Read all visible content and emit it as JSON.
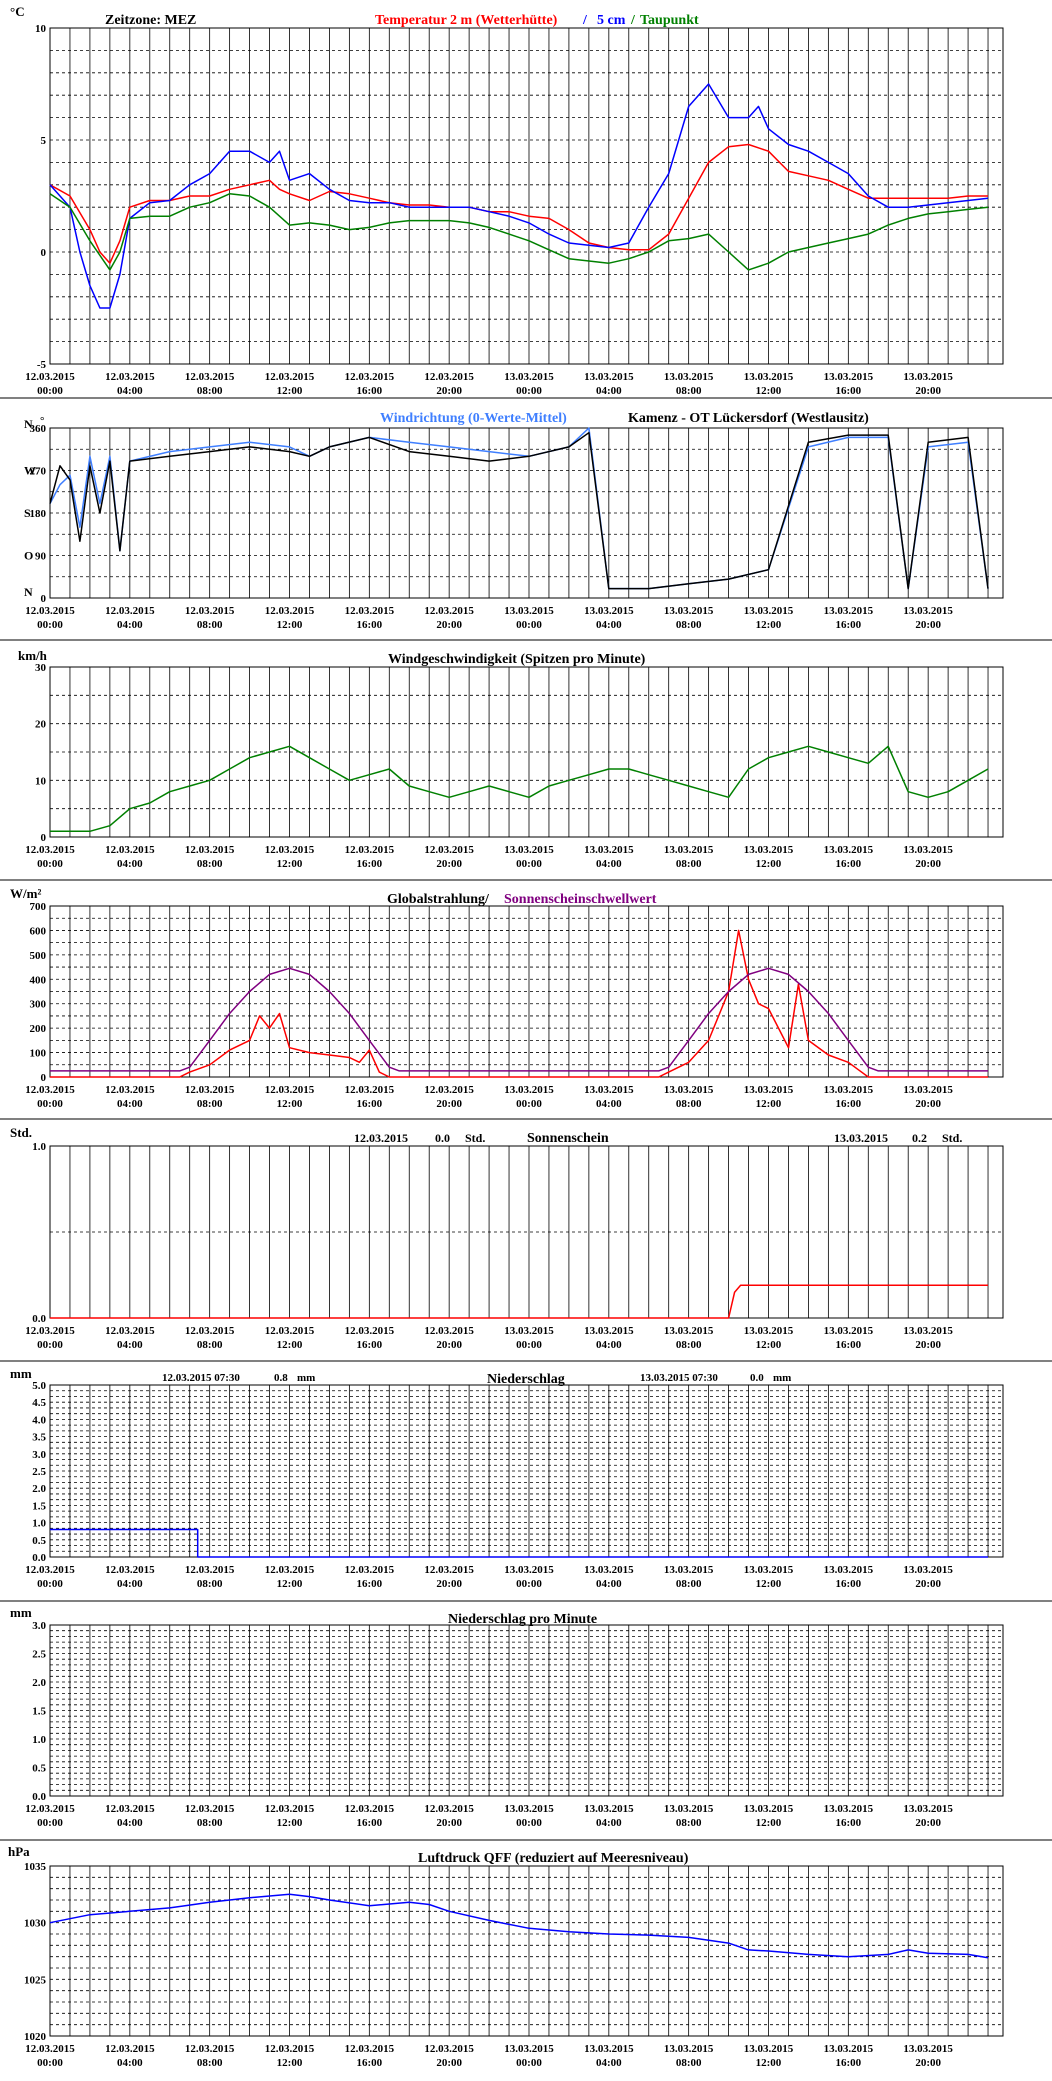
{
  "x_ticks": [
    {
      "date": "12.03.2015",
      "time": "00:00"
    },
    {
      "date": "12.03.2015",
      "time": "04:00"
    },
    {
      "date": "12.03.2015",
      "time": "08:00"
    },
    {
      "date": "12.03.2015",
      "time": "12:00"
    },
    {
      "date": "12.03.2015",
      "time": "16:00"
    },
    {
      "date": "12.03.2015",
      "time": "20:00"
    },
    {
      "date": "13.03.2015",
      "time": "00:00"
    },
    {
      "date": "13.03.2015",
      "time": "04:00"
    },
    {
      "date": "13.03.2015",
      "time": "08:00"
    },
    {
      "date": "13.03.2015",
      "time": "12:00"
    },
    {
      "date": "13.03.2015",
      "time": "16:00"
    },
    {
      "date": "13.03.2015",
      "time": "20:00"
    }
  ],
  "colors": {
    "red": "#ff0000",
    "blue": "#0000ff",
    "green": "#008000",
    "black": "#000000",
    "purple": "#800080",
    "lightblue": "#3f7fff"
  },
  "panels": {
    "temp": {
      "unit": "°C",
      "zone": "Zeitzone: MEZ",
      "title_red": "Temperatur 2 m (Wetterhütte)",
      "sep1": "/",
      "title_blue": "5 cm",
      "sep2": "/",
      "title_green": "Taupunkt",
      "yticks": [
        "10",
        "5",
        "0",
        "-5"
      ]
    },
    "wind_dir": {
      "title_blue": "Windrichtung (0-Werte-Mittel)",
      "title_black": "Kamenz - OT Lückersdorf (Westlausitz)",
      "compass": [
        "N",
        "W",
        "S",
        "O",
        "N"
      ],
      "yticks": [
        "360",
        "270",
        "180",
        "90",
        "0"
      ],
      "degree": "°"
    },
    "wind_speed": {
      "unit": "km/h",
      "title": "Windgeschwindigkeit (Spitzen pro Minute)",
      "yticks": [
        "30",
        "20",
        "10",
        "0"
      ]
    },
    "radiation": {
      "unit": "W/m²",
      "title_black": "Globalstrahlung/",
      "title_purple": "Sonnenscheinschwellwert",
      "yticks": [
        "700",
        "600",
        "500",
        "400",
        "300",
        "200",
        "100",
        "0"
      ]
    },
    "sunshine": {
      "unit": "Std.",
      "title": "Sonnenschein",
      "day1_date": "12.03.2015",
      "day1_value": "0.0",
      "day1_unit": "Std.",
      "day2_date": "13.03.2015",
      "day2_value": "0.2",
      "day2_unit": "Std.",
      "yticks": [
        "1.0",
        "0.0"
      ]
    },
    "precip": {
      "unit": "mm",
      "title": "Niederschlag",
      "day1_label": "12.03.2015 07:30",
      "day1_value": "0.8",
      "day1_unit": "mm",
      "day2_label": "13.03.2015 07:30",
      "day2_value": "0.0",
      "day2_unit": "mm",
      "yticks": [
        "5.0",
        "4.5",
        "4.0",
        "3.5",
        "3.0",
        "2.5",
        "2.0",
        "1.5",
        "1.0",
        "0.5",
        "0.0"
      ]
    },
    "precip_min": {
      "unit": "mm",
      "title": "Niederschlag pro Minute",
      "yticks": [
        "3.0",
        "2.5",
        "2.0",
        "1.5",
        "1.0",
        "0.5",
        "0.0"
      ]
    },
    "pressure": {
      "unit": "hPa",
      "title": "Luftdruck QFF (reduziert auf Meeresniveau)",
      "yticks": [
        "1035",
        "1030",
        "1025",
        "1020"
      ]
    }
  },
  "chart_data": [
    {
      "type": "line",
      "panel": "temp",
      "ylim": [
        -5,
        10
      ],
      "x_unit": "hours since 12.03.2015 00:00",
      "series": [
        {
          "name": "Temperatur 2 m (Wetterhütte)",
          "color": "#ff0000",
          "x": [
            0,
            1,
            2,
            2.5,
            3,
            3.5,
            4,
            5,
            6,
            7,
            8,
            9,
            10,
            11,
            11.5,
            12,
            13,
            14,
            15,
            16,
            17,
            18,
            19,
            20,
            21,
            22,
            23,
            24,
            25,
            26,
            27,
            28,
            29,
            30,
            31,
            32,
            33,
            34,
            35,
            36,
            37,
            38,
            39,
            40,
            41,
            42,
            43,
            44,
            45,
            46,
            47
          ],
          "y": [
            3,
            2.5,
            1,
            0,
            -0.5,
            0.5,
            2,
            2.3,
            2.3,
            2.5,
            2.5,
            2.8,
            3,
            3.2,
            2.8,
            2.6,
            2.3,
            2.7,
            2.6,
            2.4,
            2.2,
            2.1,
            2.1,
            2,
            2,
            1.8,
            1.8,
            1.6,
            1.5,
            1.0,
            0.4,
            0.2,
            0.1,
            0.1,
            0.8,
            2.4,
            4,
            4.7,
            4.8,
            4.5,
            3.6,
            3.4,
            3.2,
            2.8,
            2.4,
            2.4,
            2.4,
            2.4,
            2.4,
            2.5,
            2.5
          ]
        },
        {
          "name": "5 cm",
          "color": "#0000ff",
          "x": [
            0,
            1,
            1.5,
            2,
            2.5,
            3,
            3.5,
            4,
            5,
            6,
            7,
            8,
            9,
            10,
            11,
            11.5,
            12,
            13,
            14,
            15,
            16,
            17,
            18,
            19,
            20,
            21,
            22,
            23,
            24,
            25,
            26,
            27,
            28,
            29,
            30,
            31,
            32,
            33,
            34,
            35,
            35.5,
            36,
            37,
            38,
            39,
            40,
            41,
            42,
            43,
            44,
            45,
            46,
            47
          ],
          "y": [
            3,
            2,
            0,
            -1.5,
            -2.5,
            -2.5,
            -1,
            1.5,
            2.2,
            2.3,
            3,
            3.5,
            4.5,
            4.5,
            4,
            4.5,
            3.2,
            3.5,
            2.8,
            2.3,
            2.2,
            2.2,
            2,
            2,
            2,
            2,
            1.8,
            1.6,
            1.3,
            0.8,
            0.4,
            0.3,
            0.2,
            0.4,
            2,
            3.5,
            6.5,
            7.5,
            6,
            6,
            6.5,
            5.5,
            4.8,
            4.5,
            4,
            3.5,
            2.5,
            2,
            2,
            2.1,
            2.2,
            2.3,
            2.4
          ]
        },
        {
          "name": "Taupunkt",
          "color": "#008000",
          "x": [
            0,
            1,
            2,
            3,
            3.5,
            4,
            5,
            6,
            7,
            8,
            9,
            10,
            11,
            12,
            13,
            14,
            15,
            16,
            17,
            18,
            19,
            20,
            21,
            22,
            23,
            24,
            25,
            26,
            27,
            28,
            29,
            30,
            31,
            32,
            33,
            34,
            35,
            36,
            37,
            38,
            39,
            40,
            41,
            42,
            43,
            44,
            45,
            46,
            47
          ],
          "y": [
            2.6,
            2,
            0.5,
            -0.8,
            0,
            1.5,
            1.6,
            1.6,
            2,
            2.2,
            2.6,
            2.5,
            2,
            1.2,
            1.3,
            1.2,
            1,
            1.1,
            1.3,
            1.4,
            1.4,
            1.4,
            1.3,
            1.1,
            0.8,
            0.5,
            0.1,
            -0.3,
            -0.4,
            -0.5,
            -0.3,
            0,
            0.5,
            0.6,
            0.8,
            0,
            -0.8,
            -0.5,
            0,
            0.2,
            0.4,
            0.6,
            0.8,
            1.2,
            1.5,
            1.7,
            1.8,
            1.9,
            2
          ]
        }
      ]
    },
    {
      "type": "line",
      "panel": "wind_dir",
      "ylim": [
        0,
        360
      ],
      "x_unit": "hours since 12.03.2015 00:00",
      "series": [
        {
          "name": "Windrichtung (0-Werte-Mittel)",
          "color": "#3f7fff",
          "x": [
            0,
            0.5,
            1,
            1.5,
            2,
            2.5,
            3,
            3.5,
            4,
            6,
            8,
            10,
            12,
            13,
            14,
            16,
            18,
            20,
            22,
            24,
            26,
            27,
            28,
            30,
            32,
            34,
            36,
            38,
            40,
            42,
            43,
            44,
            46,
            47
          ],
          "y": [
            200,
            240,
            260,
            150,
            300,
            200,
            300,
            100,
            290,
            310,
            320,
            330,
            320,
            300,
            320,
            340,
            330,
            320,
            310,
            300,
            320,
            360,
            20,
            20,
            30,
            40,
            60,
            320,
            340,
            340,
            20,
            320,
            330,
            20
          ]
        },
        {
          "name": "Kamenz - OT Lückersdorf (Westlausitz)",
          "color": "#000000",
          "x": [
            0,
            0.5,
            1,
            1.5,
            2,
            2.5,
            3,
            3.5,
            4,
            6,
            8,
            10,
            12,
            13,
            14,
            16,
            18,
            20,
            22,
            24,
            26,
            27,
            28,
            30,
            32,
            34,
            36,
            38,
            40,
            42,
            43,
            44,
            46,
            47
          ],
          "y": [
            200,
            280,
            250,
            120,
            280,
            180,
            290,
            100,
            290,
            300,
            310,
            320,
            310,
            300,
            320,
            340,
            310,
            300,
            290,
            300,
            320,
            350,
            20,
            20,
            30,
            40,
            60,
            330,
            345,
            345,
            20,
            330,
            340,
            20
          ]
        }
      ]
    },
    {
      "type": "line",
      "panel": "wind_speed",
      "ylim": [
        0,
        30
      ],
      "x_unit": "hours since 12.03.2015 00:00",
      "series": [
        {
          "name": "Windgeschwindigkeit (Spitzen pro Minute)",
          "color": "#008000",
          "x": [
            0,
            1,
            2,
            3,
            4,
            5,
            6,
            7,
            8,
            9,
            10,
            11,
            12,
            13,
            14,
            15,
            16,
            17,
            18,
            19,
            20,
            21,
            22,
            23,
            24,
            25,
            26,
            27,
            28,
            29,
            30,
            31,
            32,
            33,
            34,
            35,
            36,
            37,
            38,
            39,
            40,
            41,
            42,
            43,
            44,
            45,
            46,
            47
          ],
          "y": [
            1,
            1,
            1,
            2,
            5,
            6,
            8,
            9,
            10,
            12,
            14,
            15,
            16,
            14,
            12,
            10,
            11,
            12,
            9,
            8,
            7,
            8,
            9,
            8,
            7,
            9,
            10,
            11,
            12,
            12,
            11,
            10,
            9,
            8,
            7,
            12,
            14,
            15,
            16,
            15,
            14,
            13,
            16,
            8,
            7,
            8,
            10,
            12
          ]
        }
      ]
    },
    {
      "type": "line",
      "panel": "radiation",
      "ylim": [
        0,
        700
      ],
      "x_unit": "hours since 12.03.2015 00:00",
      "series": [
        {
          "name": "Globalstrahlung",
          "color": "#ff0000",
          "x": [
            0,
            6.5,
            7,
            8,
            9,
            10,
            10.5,
            11,
            11.5,
            12,
            13,
            14,
            15,
            15.5,
            16,
            16.5,
            17,
            18,
            24,
            30.5,
            31,
            32,
            33,
            34,
            34.5,
            35,
            35.5,
            36,
            36.5,
            37,
            37.5,
            38,
            39,
            40,
            40.5,
            41,
            47
          ],
          "y": [
            0,
            0,
            20,
            50,
            110,
            150,
            250,
            200,
            260,
            120,
            100,
            90,
            80,
            60,
            110,
            20,
            0,
            0,
            0,
            0,
            20,
            60,
            150,
            350,
            600,
            400,
            300,
            280,
            200,
            120,
            380,
            150,
            90,
            60,
            30,
            0,
            0
          ]
        },
        {
          "name": "Sonnenscheinschwellwert",
          "color": "#800080",
          "x": [
            0,
            6.5,
            7,
            8,
            9,
            10,
            11,
            12,
            13,
            14,
            15,
            16,
            17,
            17.5,
            30.5,
            31,
            32,
            33,
            34,
            35,
            36,
            37,
            38,
            39,
            40,
            41,
            41.5,
            47
          ],
          "y": [
            25,
            25,
            40,
            150,
            260,
            350,
            420,
            445,
            420,
            350,
            260,
            150,
            40,
            25,
            25,
            40,
            150,
            260,
            350,
            420,
            445,
            420,
            350,
            260,
            150,
            40,
            25,
            25
          ]
        }
      ]
    },
    {
      "type": "line",
      "panel": "sunshine",
      "ylim": [
        0,
        1
      ],
      "x_unit": "hours since 12.03.2015 00:00",
      "series": [
        {
          "name": "Sonnenschein",
          "color": "#ff0000",
          "x": [
            0,
            34,
            34.3,
            34.6,
            47
          ],
          "y": [
            0,
            0,
            0.15,
            0.19,
            0.19
          ]
        }
      ]
    },
    {
      "type": "line",
      "panel": "precip",
      "ylim": [
        0,
        5
      ],
      "x_unit": "hours since 12.03.2015 00:00",
      "series": [
        {
          "name": "Niederschlag",
          "color": "#0000ff",
          "x": [
            0,
            7.4,
            7.4,
            47
          ],
          "y": [
            0.8,
            0.8,
            0,
            0
          ]
        }
      ]
    },
    {
      "type": "line",
      "panel": "precip_min",
      "ylim": [
        0,
        3
      ],
      "x_unit": "hours since 12.03.2015 00:00",
      "series": []
    },
    {
      "type": "line",
      "panel": "pressure",
      "ylim": [
        1020,
        1035
      ],
      "x_unit": "hours since 12.03.2015 00:00",
      "series": [
        {
          "name": "Luftdruck QFF",
          "color": "#0000ff",
          "x": [
            0,
            2,
            4,
            6,
            8,
            10,
            12,
            13,
            14,
            16,
            18,
            19,
            20,
            22,
            24,
            26,
            28,
            30,
            32,
            34,
            35,
            36,
            38,
            40,
            42,
            43,
            44,
            46,
            47
          ],
          "y": [
            1030,
            1030.7,
            1031,
            1031.3,
            1031.8,
            1032.2,
            1032.5,
            1032.3,
            1032,
            1031.5,
            1031.8,
            1031.6,
            1031,
            1030.2,
            1029.5,
            1029.2,
            1029,
            1028.9,
            1028.7,
            1028.2,
            1027.6,
            1027.5,
            1027.2,
            1027,
            1027.2,
            1027.6,
            1027.3,
            1027.2,
            1026.9
          ]
        }
      ]
    }
  ]
}
